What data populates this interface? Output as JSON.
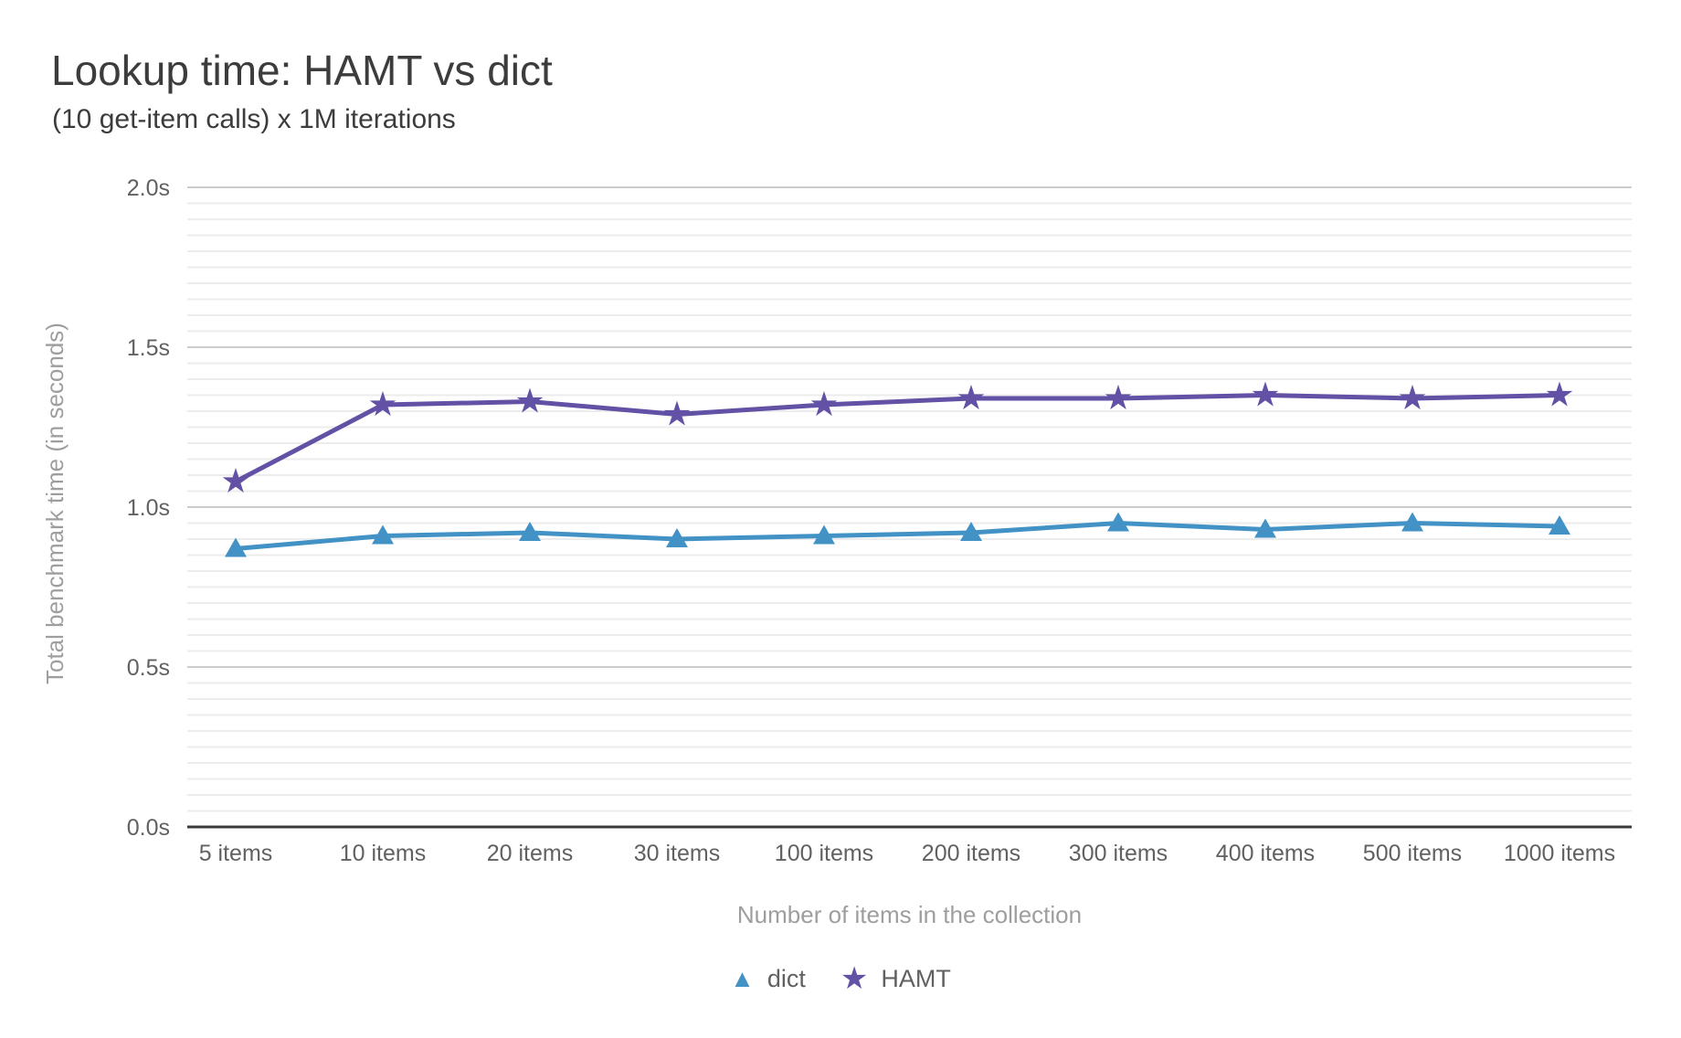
{
  "chart_data": {
    "type": "line",
    "title": "Lookup time: HAMT vs dict",
    "subtitle": "(10 get-item calls) x 1M iterations",
    "xlabel": "Number of items in the collection",
    "ylabel": "Total benchmark time (in seconds)",
    "categories": [
      "5 items",
      "10 items",
      "20 items",
      "30 items",
      "100 items",
      "200 items",
      "300 items",
      "400 items",
      "500 items",
      "1000 items"
    ],
    "series": [
      {
        "name": "dict",
        "marker": "triangle",
        "color": "#4292c6",
        "values": [
          0.87,
          0.91,
          0.92,
          0.9,
          0.91,
          0.92,
          0.95,
          0.93,
          0.95,
          0.94
        ]
      },
      {
        "name": "HAMT",
        "marker": "star",
        "color": "#6351a5",
        "values": [
          1.08,
          1.32,
          1.33,
          1.29,
          1.32,
          1.34,
          1.34,
          1.35,
          1.34,
          1.35
        ]
      }
    ],
    "ylim": [
      0,
      2.0
    ],
    "y_ticks": [
      {
        "value": 0.0,
        "label": "0.0s"
      },
      {
        "value": 0.5,
        "label": "0.5s"
      },
      {
        "value": 1.0,
        "label": "1.0s"
      },
      {
        "value": 1.5,
        "label": "1.5s"
      },
      {
        "value": 2.0,
        "label": "2.0s"
      }
    ],
    "y_minor_step": 0.05,
    "grid": "horizontal major+minor",
    "legend_position": "bottom"
  },
  "colors": {
    "background": "#ffffff",
    "title_text": "#3c3c3c",
    "tick_text": "#616161",
    "axis_title_text": "#9e9e9e",
    "legend_text": "#616161",
    "major_grid": "#cccccc",
    "minor_grid": "#ececec",
    "axis_line": "#3a3a3a",
    "series_dict": "#4292c6",
    "series_hamt": "#6351a5"
  }
}
